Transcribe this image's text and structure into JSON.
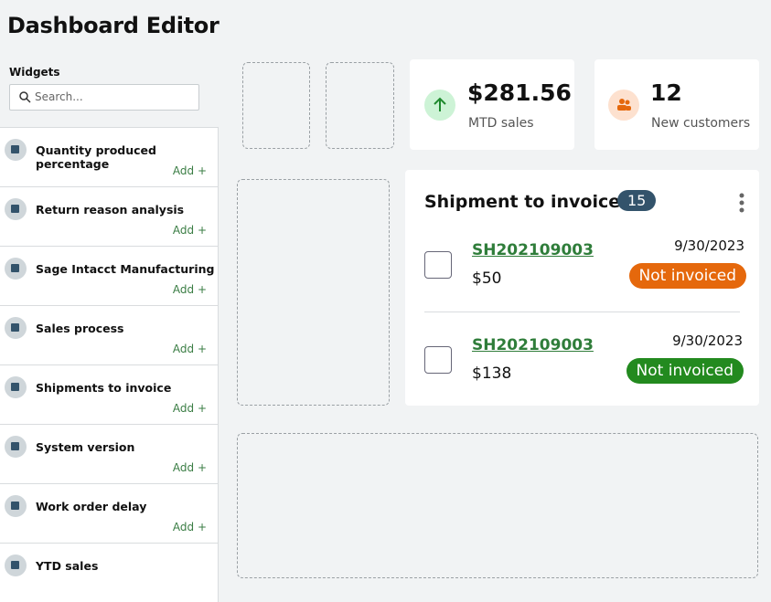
{
  "header": {
    "title": "Dashboard Editor"
  },
  "sidebar": {
    "label": "Widgets",
    "search_placeholder": "Search...",
    "widgets": [
      {
        "name": "Quantity produced percentage",
        "action": "Add +"
      },
      {
        "name": "Return reason analysis",
        "action": "Add +"
      },
      {
        "name": "Sage Intacct Manufacturing",
        "action": "Add +"
      },
      {
        "name": "Sales process",
        "action": "Add +"
      },
      {
        "name": "Shipments to invoice",
        "action": "Add +"
      },
      {
        "name": "System version",
        "action": "Add +"
      },
      {
        "name": "Work order delay",
        "action": "Add +"
      },
      {
        "name": "YTD sales"
      }
    ]
  },
  "kpis": [
    {
      "value": "$281.56",
      "label": "MTD sales"
    },
    {
      "value": "12",
      "label": "New customers"
    }
  ],
  "shipment_card": {
    "title": "Shipment to invoice",
    "count": "15",
    "items": [
      {
        "id": "SH202109003",
        "amount": "$50",
        "date": "9/30/2023",
        "status": "Not invoiced",
        "status_color": "#e5680c"
      },
      {
        "id": "SH202109003",
        "amount": "$138",
        "date": "9/30/2023",
        "status": "Not invoiced",
        "status_color": "#238a1f"
      }
    ]
  }
}
